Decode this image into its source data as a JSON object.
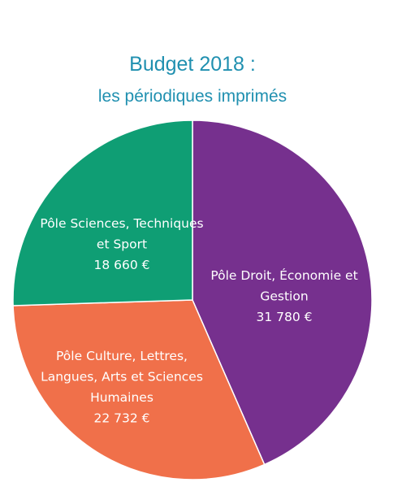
{
  "chart_data": {
    "type": "pie",
    "title": "Budget 2018 :",
    "subtitle": "les périodiques imprimés",
    "unit": "€",
    "slices": [
      {
        "label_lines": [
          "Pôle Droit, Économie et",
          "Gestion"
        ],
        "value": 31780,
        "value_text": "31 780 €",
        "color": "#76308e"
      },
      {
        "label_lines": [
          "Pôle Culture, Lettres,",
          "Langues, Arts et Sciences",
          "Humaines"
        ],
        "value": 22732,
        "value_text": "22 732 €",
        "color": "#f0704a"
      },
      {
        "label_lines": [
          "Pôle Sciences, Techniques",
          "et Sport"
        ],
        "value": 18660,
        "value_text": "18 660 €",
        "color": "#0f9e74"
      }
    ]
  }
}
